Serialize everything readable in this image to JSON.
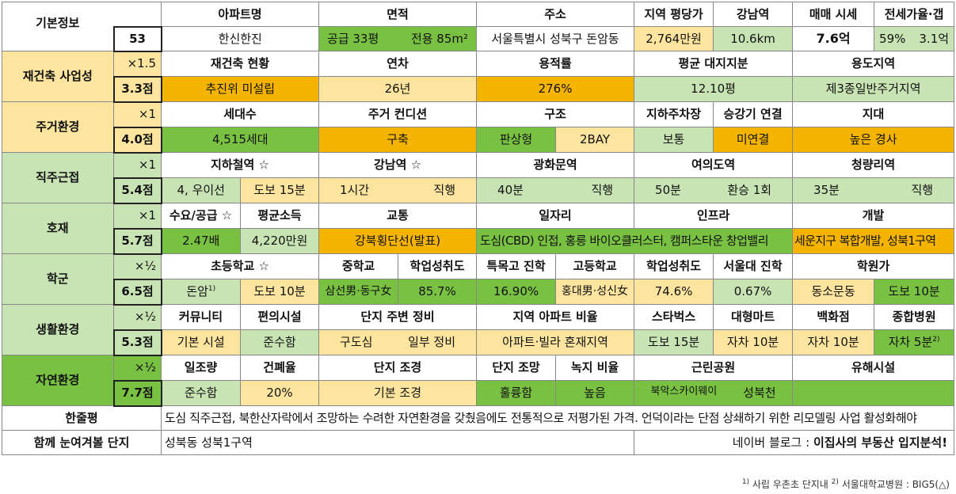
{
  "basic": {
    "label": "기본정보",
    "number": "53",
    "headers": [
      "아파트명",
      "면적",
      "주소",
      "지역 평당가",
      "강남역",
      "매매 시세",
      "전세가율·갭"
    ],
    "name": "한신한진",
    "area_supply": "공급 33평",
    "area_exclusive": "전용 85m²",
    "address": "서울특별시 성북구 돈암동",
    "price_per_pyeong": "2,764만원",
    "gangnam_dist": "10.6km",
    "sale_price": "7.6억",
    "jeonse_ratio": "59%",
    "gap": "3.1억"
  },
  "rebuild": {
    "label": "재건축 사업성",
    "weight": "×1.5",
    "score": "3.3점",
    "headers": [
      "재건축 현황",
      "연차",
      "용적률",
      "평균 대지지분",
      "용도지역"
    ],
    "values": [
      "추진위 미설립",
      "26년",
      "276%",
      "12.10평",
      "제3종일반주거지역"
    ]
  },
  "living": {
    "label": "주거환경",
    "weight": "×1",
    "score": "4.0점",
    "headers": [
      "세대수",
      "주거 컨디션",
      "구조",
      "지하주차장",
      "승강기 연결",
      "지대"
    ],
    "households": "4,515세대",
    "condition": "구축",
    "structure_a": "판상형",
    "structure_b": "2BAY",
    "parking": "보통",
    "elevator": "미연결",
    "terrain": "높은 경사"
  },
  "commute": {
    "label": "직주근접",
    "weight": "×1",
    "score": "5.4점",
    "headers": [
      "지하철역 ☆",
      "강남역 ☆",
      "광화문역",
      "여의도역",
      "청량리역"
    ],
    "subway_a": "4, 우이선",
    "subway_b": "도보 15분",
    "gangnam_a": "1시간",
    "gangnam_b": "직행",
    "gwanghwamun_a": "40분",
    "gwanghwamun_b": "직행",
    "yeouido_a": "50분",
    "yeouido_b": "환승 1회",
    "cheongnyangni_a": "35분",
    "cheongnyangni_b": "직행"
  },
  "dev": {
    "label": "호재",
    "weight": "×1",
    "score": "5.7점",
    "headers": [
      "수요/공급 ☆",
      "평균소득",
      "교통",
      "일자리",
      "인프라",
      "개발"
    ],
    "supply": "2.47배",
    "income": "4,220만원",
    "transport": "강북횡단선(발표)",
    "jobs_infra": "도심(CBD) 인접, 홍릉 바이오클러스터, 캠퍼스타운 창업밸리",
    "development": "세운지구 복합개발, 성북1구역"
  },
  "school": {
    "label": "학군",
    "weight": "×½",
    "score": "6.5점",
    "headers": [
      "초등학교 ☆",
      "중학교",
      "학업성취도",
      "특목고 진학",
      "고등학교",
      "학업성취도",
      "서울대 진학",
      "학원가"
    ],
    "elem_a": "돈암",
    "elem_note": "1)",
    "elem_b": "도보 10분",
    "middle": "삼선男·동구女",
    "middle_score": "85.7%",
    "special": "16.90%",
    "high": "홍대男·성신女",
    "high_score": "74.6%",
    "snu": "0.67%",
    "academy_a": "동소문동",
    "academy_b": "도보 10분"
  },
  "life": {
    "label": "생활환경",
    "weight": "×½",
    "score": "5.3점",
    "headers": [
      "커뮤니티",
      "편의시설",
      "단지 주변 정비",
      "지역 아파트 비율",
      "스타벅스",
      "대형마트",
      "백화점",
      "종합병원"
    ],
    "community": "기본 시설",
    "convenience": "준수함",
    "surround_a": "구도심",
    "surround_b": "일부 정비",
    "apt_ratio": "아파트·빌라 혼재지역",
    "starbucks": "도보 15분",
    "mart": "자차 10분",
    "dept": "자차 10분",
    "hospital": "자차 5분",
    "hospital_note": "2)"
  },
  "nature": {
    "label": "자연환경",
    "weight": "×½",
    "score": "7.7점",
    "headers": [
      "일조량",
      "건폐율",
      "단지 조경",
      "단지 조망",
      "녹지 비율",
      "근린공원",
      "유해시설"
    ],
    "sunlight": "준수함",
    "coverage": "20%",
    "landscape": "기본 조경",
    "view": "훌륭함",
    "green": "높음",
    "park_a": "북악스카이웨이",
    "park_b": "성북천",
    "hazard": ""
  },
  "summary": {
    "label": "한줄평",
    "text": "도심 직주근접, 북한산자락에서 조망하는 수려한 자연환경을 갖췄음에도 전통적으로 저평가된 가격. 언덕이라는 단점 상쇄하기 위한 리모델링 사업 활성화해야"
  },
  "together": {
    "label": "함께 눈여겨볼 단지",
    "value": "성북동 성북1구역",
    "blog": "네이버 블로그 : ",
    "blog_bold": "이집사의 부동산 입지분석!"
  },
  "footnote": {
    "n1": "1)",
    "t1": " 사립 우촌초 단지내 ",
    "n2": "2)",
    "t2": " 서울대학교병원 : BIG5(△)"
  }
}
